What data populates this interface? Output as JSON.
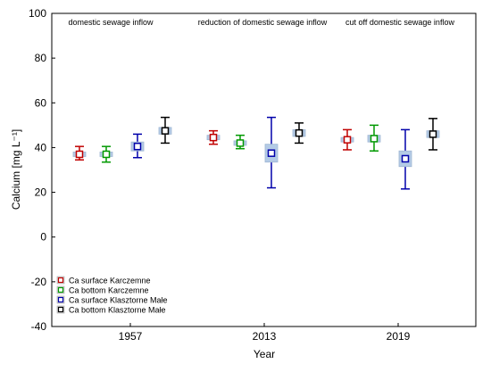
{
  "chart_data": {
    "type": "scatter",
    "ylabel": "Calcium [mg L⁻¹]",
    "xlabel": "Year",
    "categories": [
      "1957",
      "2013",
      "2019"
    ],
    "ylim": [
      -40,
      100
    ],
    "yticks": [
      -40,
      -20,
      0,
      20,
      40,
      60,
      80,
      100
    ],
    "grid": false,
    "legend_position": "bottom-left",
    "annotations": [
      "domestic sewage inflow",
      "reduction of domestic sewage inflow",
      "cut off domestic sewage inflow"
    ],
    "series": [
      {
        "name": "Ca surface Karczemne",
        "color": "#c00000",
        "mean": [
          37,
          44.5,
          43.5
        ],
        "se_low": [
          36,
          43.5,
          42.5
        ],
        "se_high": [
          38,
          45.5,
          44.5
        ],
        "low": [
          34.5,
          41.5,
          39
        ],
        "high": [
          40.5,
          47.5,
          48
        ]
      },
      {
        "name": "Ca bottom Karczemne",
        "color": "#009900",
        "mean": [
          37,
          42,
          44
        ],
        "se_low": [
          36,
          41,
          42.5
        ],
        "se_high": [
          38,
          43,
          45.5
        ],
        "low": [
          33.5,
          39.5,
          38.5
        ],
        "high": [
          40.5,
          45.5,
          50
        ]
      },
      {
        "name": "Ca surface Klasztorne Małe",
        "color": "#0000aa",
        "mean": [
          40.5,
          37.5,
          35
        ],
        "se_low": [
          38.5,
          33.5,
          31.5
        ],
        "se_high": [
          42.5,
          41.5,
          38.5
        ],
        "low": [
          35.5,
          22,
          21.5
        ],
        "high": [
          46,
          53.5,
          48
        ]
      },
      {
        "name": "Ca bottom Klasztorne Małe",
        "color": "#000000",
        "mean": [
          47.5,
          46.5,
          46
        ],
        "se_low": [
          46,
          45,
          44.5
        ],
        "se_high": [
          49,
          48,
          47.5
        ],
        "low": [
          42,
          42,
          39
        ],
        "high": [
          53.5,
          51,
          53
        ]
      }
    ]
  }
}
